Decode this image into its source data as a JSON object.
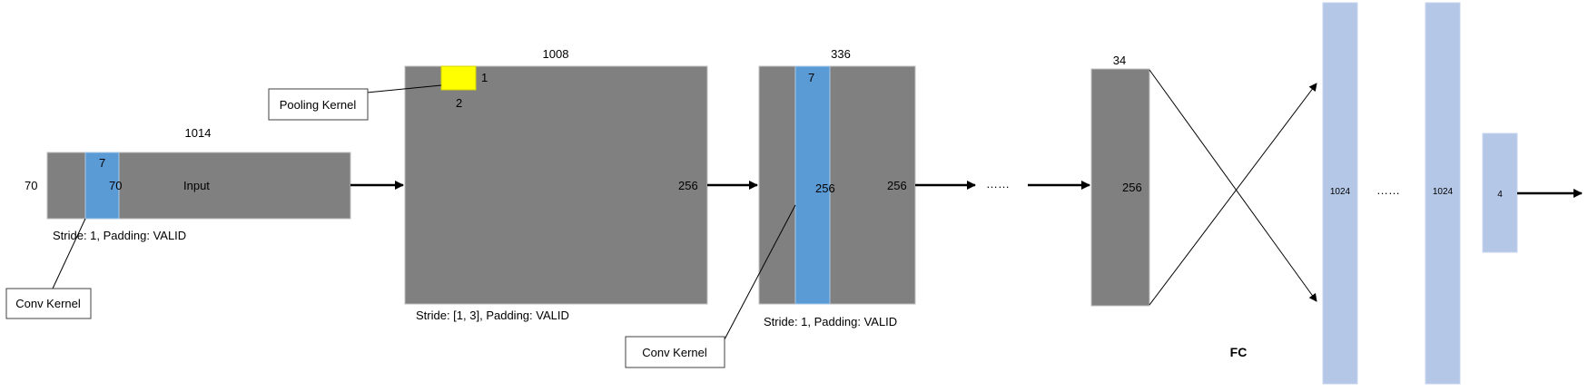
{
  "input_block": {
    "width_label": "1014",
    "height_label": "70",
    "kernel_width_label": "7",
    "kernel_height_label": "70",
    "name_label": "Input",
    "caption": "Stride: 1, Padding: VALID",
    "callout": "Conv Kernel"
  },
  "conv_map_1": {
    "width_label": "1008",
    "height_label": "256",
    "kernel_top_label": "1",
    "kernel_side_label": "2",
    "callout": "Pooling Kernel",
    "caption": "Stride: [1, 3], Padding: VALID"
  },
  "pool_map_1": {
    "width_label": "336",
    "kernel_width_label": "7",
    "kernel_height_label": "256",
    "height_label": "256",
    "caption": "Stride: 1, Padding: VALID",
    "callout": "Conv Kernel"
  },
  "ellipsis": "……",
  "final_map": {
    "width_label": "34",
    "height_label": "256"
  },
  "fc": {
    "label": "FC",
    "layer_1_label": "1024",
    "ellipsis": "……",
    "layer_2_label": "1024",
    "output_label": "4"
  },
  "colors": {
    "feature_map": "#808080",
    "conv_kernel": "#5b9bd5",
    "pooling_kernel": "#ffff00",
    "fc_layer": "#b4c7e7"
  }
}
